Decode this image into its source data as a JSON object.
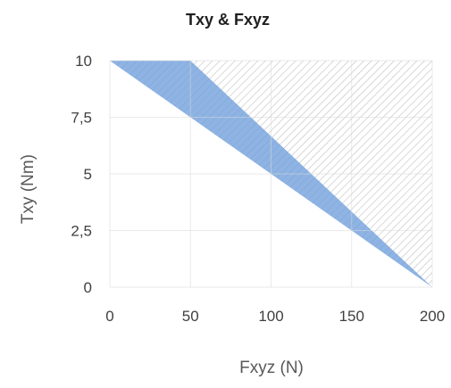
{
  "chart_data": {
    "type": "area",
    "title": "Txy & Fxyz",
    "xlabel": "Fxyz (N)",
    "ylabel": "Txy (Nm)",
    "xlim": [
      0,
      200
    ],
    "ylim": [
      0,
      10
    ],
    "x_ticks": [
      "0",
      "50",
      "100",
      "150",
      "200"
    ],
    "y_ticks": [
      "0",
      "2,5",
      "5",
      "7,5",
      "10"
    ],
    "grid": true,
    "legend": "none",
    "series": [
      {
        "x": [
          0,
          50,
          200
        ],
        "y": [
          10,
          10,
          0
        ],
        "color": "#8fb4e3",
        "fill": "solid-with-hatch"
      },
      {
        "x": [
          0,
          200,
          200,
          50
        ],
        "y": [
          10,
          10,
          0,
          10
        ],
        "color": "#c9c9c9",
        "fill": "hatch"
      }
    ]
  }
}
